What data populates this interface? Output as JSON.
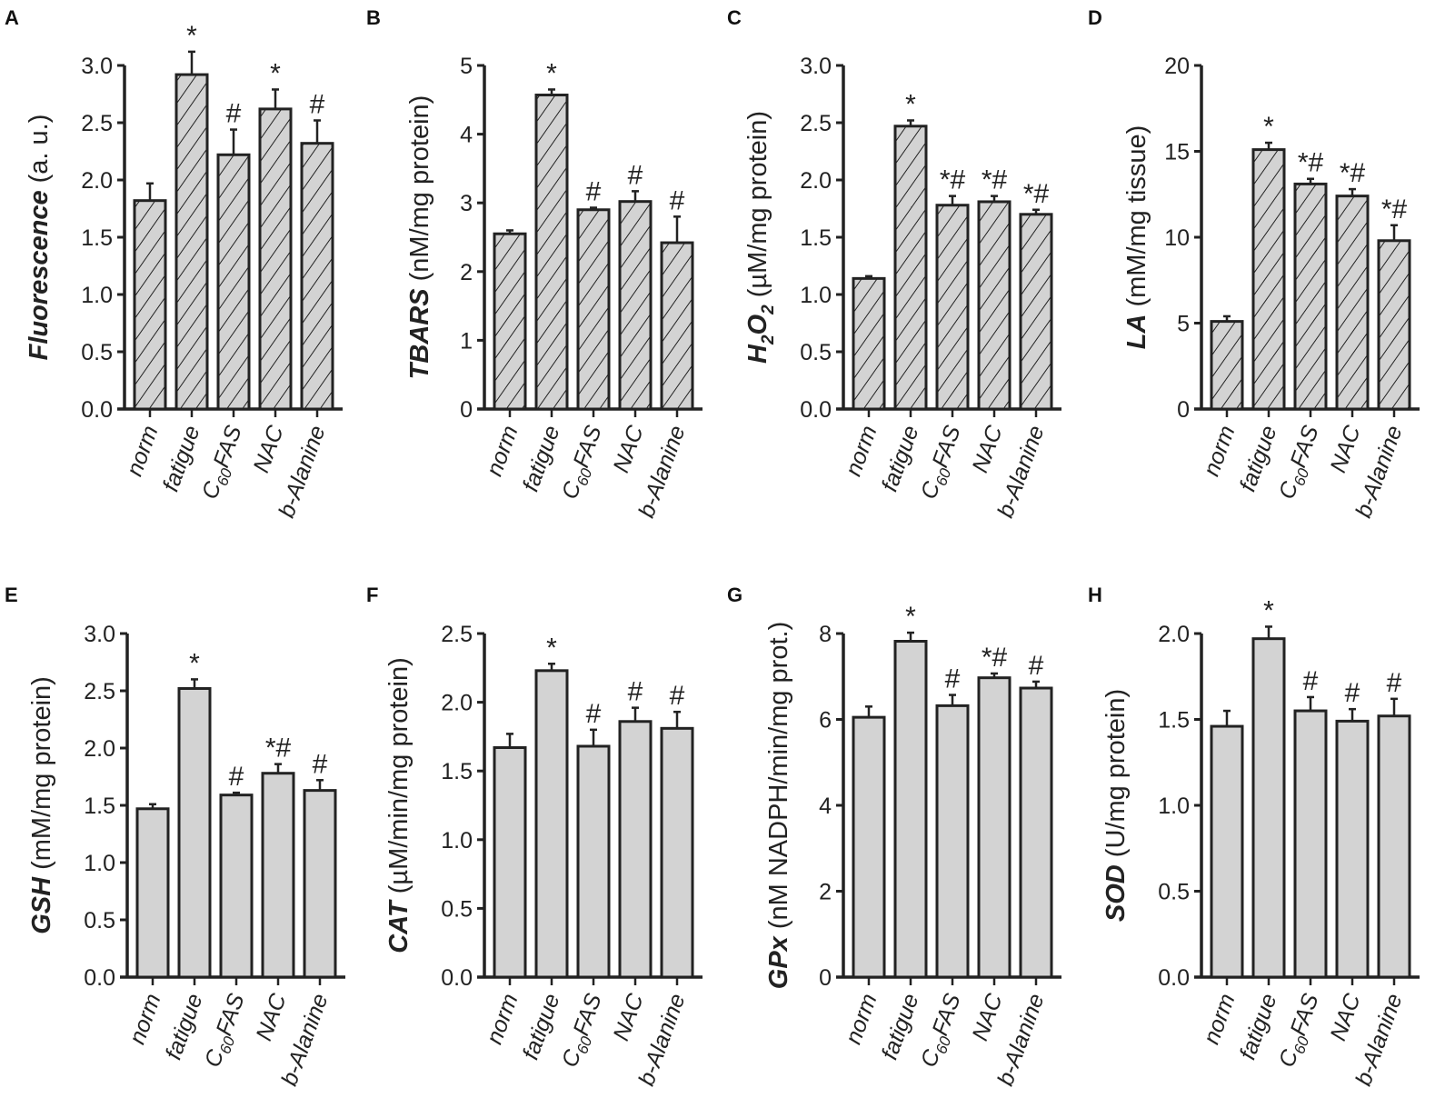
{
  "chart_data": [
    {
      "panel": "A",
      "type": "bar",
      "hatched": true,
      "ylabel": [
        {
          "t": "Fluorescence",
          "b": true
        },
        {
          "t": "  (a. u.)"
        }
      ],
      "ylim": [
        0,
        3.0
      ],
      "yticks": [
        "0.0",
        "0.5",
        "1.0",
        "1.5",
        "2.0",
        "2.5",
        "3.0"
      ],
      "categories": [
        "norm",
        "fatigue",
        "C60FAS",
        "NAC",
        "b-Alanine"
      ],
      "values": [
        1.82,
        2.92,
        2.22,
        2.62,
        2.32
      ],
      "errors": [
        0.15,
        0.2,
        0.22,
        0.17,
        0.2
      ],
      "annotations": [
        "",
        "*",
        "#",
        "*",
        "#"
      ]
    },
    {
      "panel": "B",
      "type": "bar",
      "hatched": true,
      "ylabel": [
        {
          "t": "TBARS",
          "b": true
        },
        {
          "t": "  (nM/mg protein)"
        }
      ],
      "ylim": [
        0,
        5
      ],
      "yticks": [
        "0",
        "1",
        "2",
        "3",
        "4",
        "5"
      ],
      "categories": [
        "norm",
        "fatigue",
        "C60FAS",
        "NAC",
        "b-Alanine"
      ],
      "values": [
        2.55,
        4.57,
        2.9,
        3.02,
        2.42
      ],
      "errors": [
        0.05,
        0.08,
        0.03,
        0.15,
        0.38
      ],
      "annotations": [
        "",
        "*",
        "#",
        "#",
        "#"
      ]
    },
    {
      "panel": "C",
      "type": "bar",
      "hatched": true,
      "ylabel": [
        {
          "t": "H",
          "b": true
        },
        {
          "t": "2",
          "b": true,
          "sub": true
        },
        {
          "t": "O",
          "b": true
        },
        {
          "t": "2",
          "b": true,
          "sub": true
        },
        {
          "t": "  (µM/mg protein)"
        }
      ],
      "ylim": [
        0,
        3.0
      ],
      "yticks": [
        "0.0",
        "0.5",
        "1.0",
        "1.5",
        "2.0",
        "2.5",
        "3.0"
      ],
      "categories": [
        "norm",
        "fatigue",
        "C60FAS",
        "NAC",
        "b-Alanine"
      ],
      "values": [
        1.14,
        2.47,
        1.78,
        1.81,
        1.7
      ],
      "errors": [
        0.02,
        0.05,
        0.08,
        0.05,
        0.04
      ],
      "annotations": [
        "",
        "*",
        "*#",
        "*#",
        "*#"
      ]
    },
    {
      "panel": "D",
      "type": "bar",
      "hatched": true,
      "ylabel": [
        {
          "t": "LA",
          "b": true
        },
        {
          "t": " (mM/mg tissue)"
        }
      ],
      "ylim": [
        0,
        20
      ],
      "yticks": [
        "0",
        "5",
        "10",
        "15",
        "20"
      ],
      "categories": [
        "norm",
        "fatigue",
        "C60FAS",
        "NAC",
        "b-Alanine"
      ],
      "values": [
        5.1,
        15.1,
        13.1,
        12.4,
        9.8
      ],
      "errors": [
        0.3,
        0.4,
        0.3,
        0.4,
        0.9
      ],
      "annotations": [
        "",
        "*",
        "*#",
        "*#",
        "*#"
      ]
    },
    {
      "panel": "E",
      "type": "bar",
      "hatched": false,
      "ylabel": [
        {
          "t": "GSH",
          "b": true
        },
        {
          "t": "  (mM/mg protein)"
        }
      ],
      "ylim": [
        0,
        3.0
      ],
      "yticks": [
        "0.0",
        "0.5",
        "1.0",
        "1.5",
        "2.0",
        "2.5",
        "3.0"
      ],
      "categories": [
        "norm",
        "fatigue",
        "C60FAS",
        "NAC",
        "b-Alanine"
      ],
      "values": [
        1.47,
        2.52,
        1.59,
        1.78,
        1.63
      ],
      "errors": [
        0.04,
        0.08,
        0.02,
        0.08,
        0.09
      ],
      "annotations": [
        "",
        "*",
        "#",
        "*#",
        "#"
      ]
    },
    {
      "panel": "F",
      "type": "bar",
      "hatched": false,
      "ylabel": [
        {
          "t": "CAT",
          "b": true
        },
        {
          "t": "  (µM/min/mg protein)"
        }
      ],
      "ylim": [
        0,
        2.5
      ],
      "yticks": [
        "0.0",
        "0.5",
        "1.0",
        "1.5",
        "2.0",
        "2.5"
      ],
      "categories": [
        "norm",
        "fatigue",
        "C60FAS",
        "NAC",
        "b-Alanine"
      ],
      "values": [
        1.67,
        2.23,
        1.68,
        1.86,
        1.81
      ],
      "errors": [
        0.1,
        0.05,
        0.12,
        0.1,
        0.12
      ],
      "annotations": [
        "",
        "*",
        "#",
        "#",
        "#"
      ]
    },
    {
      "panel": "G",
      "type": "bar",
      "hatched": false,
      "ylabel": [
        {
          "t": "GPx",
          "b": true
        },
        {
          "t": " (nM NADPH/min/mg prot.)"
        }
      ],
      "ylim": [
        0,
        8
      ],
      "yticks": [
        "0",
        "2",
        "4",
        "6",
        "8"
      ],
      "categories": [
        "norm",
        "fatigue",
        "C60FAS",
        "NAC",
        "b-Alanine"
      ],
      "values": [
        6.05,
        7.82,
        6.32,
        6.97,
        6.73
      ],
      "errors": [
        0.25,
        0.2,
        0.25,
        0.1,
        0.15
      ],
      "annotations": [
        "",
        "*",
        "#",
        "*#",
        "#"
      ]
    },
    {
      "panel": "H",
      "type": "bar",
      "hatched": false,
      "ylabel": [
        {
          "t": "SOD",
          "b": true
        },
        {
          "t": "  (U/mg  protein)"
        }
      ],
      "ylim": [
        0,
        2.0
      ],
      "yticks": [
        "0.0",
        "0.5",
        "1.0",
        "1.5",
        "2.0"
      ],
      "categories": [
        "norm",
        "fatigue",
        "C60FAS",
        "NAC",
        "b-Alanine"
      ],
      "values": [
        1.46,
        1.97,
        1.55,
        1.49,
        1.52
      ],
      "errors": [
        0.09,
        0.07,
        0.08,
        0.07,
        0.1
      ],
      "annotations": [
        "",
        "*",
        "#",
        "#",
        "#"
      ]
    }
  ],
  "colors": {
    "bar_fill": "#d3d3d3",
    "stroke": "#222222"
  }
}
